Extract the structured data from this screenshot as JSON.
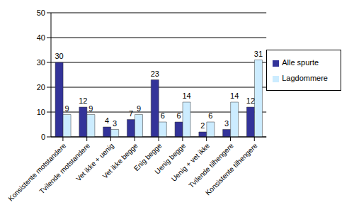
{
  "chart_data": {
    "type": "bar",
    "categories": [
      "Konsistente motstandere",
      "Tvilende motstandere",
      "Vet ikke + uenig",
      "Vet ikke begge",
      "Enig begge",
      "Uenig begge",
      "Uenig + vet ikke",
      "Tvilende tilhengere",
      "Konsistente tilhengere"
    ],
    "series": [
      {
        "name": "Alle spurte",
        "color": "#333399",
        "values": [
          30,
          12,
          4,
          7,
          23,
          6,
          2,
          3,
          12
        ]
      },
      {
        "name": "Lagdommere",
        "color": "#ccecff",
        "values": [
          9,
          9,
          3,
          9,
          6,
          14,
          6,
          14,
          31
        ]
      }
    ],
    "ylim": [
      0,
      50
    ],
    "yticks": [
      0,
      10,
      20,
      30,
      40,
      50
    ],
    "grid": true,
    "legend": "right",
    "data_labels": true
  }
}
